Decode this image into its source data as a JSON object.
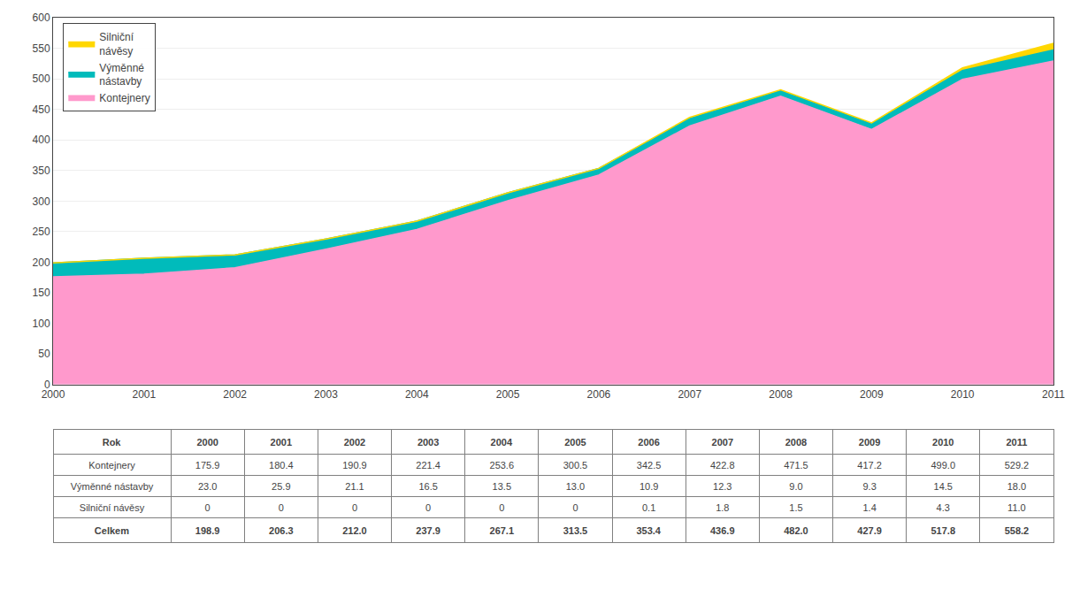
{
  "chart_data": {
    "type": "area",
    "stacked": true,
    "x": [
      2000,
      2001,
      2002,
      2003,
      2004,
      2005,
      2006,
      2007,
      2008,
      2009,
      2010,
      2011
    ],
    "series": [
      {
        "name": "Kontejnery",
        "color": "#FF99CC",
        "values": [
          175.9,
          180.4,
          190.9,
          221.4,
          253.6,
          300.5,
          342.5,
          422.8,
          471.5,
          417.2,
          499.0,
          529.2
        ]
      },
      {
        "name": "Výměnné\nnástavby",
        "color": "#00BBBB",
        "values": [
          23.0,
          25.9,
          21.1,
          16.5,
          13.5,
          13.0,
          10.9,
          12.3,
          9.0,
          9.3,
          14.5,
          18.0
        ]
      },
      {
        "name": "Silniční\nnávěsy",
        "color": "#FFD700",
        "values": [
          0,
          0,
          0,
          0,
          0,
          0,
          0.1,
          1.8,
          1.5,
          1.4,
          4.3,
          11.0
        ]
      }
    ],
    "xlim": [
      2000,
      2011
    ],
    "xticks": [
      2000,
      2001,
      2002,
      2003,
      2004,
      2005,
      2006,
      2007,
      2008,
      2009,
      2010,
      2011
    ],
    "ylim": [
      0,
      600
    ],
    "yticks": [
      0,
      50,
      100,
      150,
      200,
      250,
      300,
      350,
      400,
      450,
      500,
      550,
      600
    ],
    "grid": true,
    "legend": "upper left",
    "table": {
      "header": [
        "Rok",
        "2000",
        "2001",
        "2002",
        "2003",
        "2004",
        "2005",
        "2006",
        "2007",
        "2008",
        "2009",
        "2010",
        "2011"
      ],
      "rows": [
        [
          "Kontejnery",
          "175.9",
          "180.4",
          "190.9",
          "221.4",
          "253.6",
          "300.5",
          "342.5",
          "422.8",
          "471.5",
          "417.2",
          "499.0",
          "529.2"
        ],
        [
          "Výměnné nástavby",
          "23.0",
          "25.9",
          "21.1",
          "16.5",
          "13.5",
          "13.0",
          "10.9",
          "12.3",
          "9.0",
          "9.3",
          "14.5",
          "18.0"
        ],
        [
          "Silniční návěsy",
          "0",
          "0",
          "0",
          "0",
          "0",
          "0",
          "0.1",
          "1.8",
          "1.5",
          "1.4",
          "4.3",
          "11.0"
        ],
        [
          "Celkem",
          "198.9",
          "206.3",
          "212.0",
          "237.9",
          "267.1",
          "313.5",
          "353.4",
          "436.9",
          "482.0",
          "427.9",
          "517.8",
          "558.2"
        ]
      ]
    }
  }
}
